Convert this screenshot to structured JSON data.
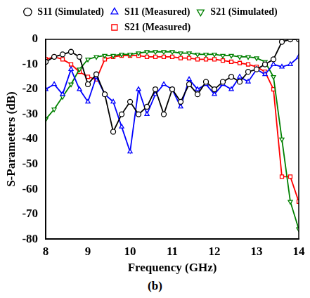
{
  "chart_data": {
    "type": "line",
    "caption": "(b)",
    "x_label": "Frequency (GHz)",
    "y_label": "S-Parameters (dB)",
    "x": [
      8.0,
      8.2,
      8.4,
      8.6,
      8.8,
      9.0,
      9.2,
      9.4,
      9.6,
      9.8,
      10.0,
      10.2,
      10.4,
      10.6,
      10.8,
      11.0,
      11.2,
      11.4,
      11.6,
      11.8,
      12.0,
      12.2,
      12.4,
      12.6,
      12.8,
      13.0,
      13.2,
      13.4,
      13.6,
      13.8,
      14.0
    ],
    "series": [
      {
        "name": "S11 (Simulated)",
        "color": "#000000",
        "marker": "circle",
        "values": [
          -9,
          -7,
          -6,
          -5,
          -7,
          -18,
          -14,
          -22,
          -37,
          -30,
          -25,
          -30,
          -27,
          -20,
          -30,
          -20,
          -25,
          -18,
          -22,
          -17,
          -20,
          -17,
          -15,
          -17,
          -13,
          -12,
          -10,
          -8,
          -1,
          0,
          0
        ]
      },
      {
        "name": "S11 (Measured)",
        "color": "#0000ff",
        "marker": "triangle",
        "values": [
          -20,
          -18,
          -22,
          -12,
          -20,
          -25,
          -15,
          -22,
          -25,
          -35,
          -45,
          -20,
          -30,
          -22,
          -18,
          -20,
          -27,
          -16,
          -20,
          -18,
          -22,
          -18,
          -20,
          -15,
          -17,
          -12,
          -14,
          -10,
          -11,
          -10,
          -7
        ]
      },
      {
        "name": "S21 (Simulated)",
        "color": "#008000",
        "marker": "triangle-down",
        "values": [
          -32,
          -28,
          -23,
          -18,
          -12,
          -8,
          -7,
          -6.5,
          -6.5,
          -6,
          -6,
          -5.5,
          -5,
          -5,
          -5,
          -5,
          -5.5,
          -5.5,
          -6,
          -6,
          -6,
          -6.5,
          -6.5,
          -7,
          -7,
          -7.5,
          -9,
          -15,
          -40,
          -65,
          -76
        ]
      },
      {
        "name": "S21 (Measured)",
        "color": "#ff0000",
        "marker": "square",
        "values": [
          -8,
          -7,
          -8,
          -10,
          -13,
          -15,
          -16,
          -8,
          -7,
          -6.5,
          -6.5,
          -6.5,
          -7,
          -7,
          -7,
          -7,
          -7.5,
          -7.5,
          -8,
          -8,
          -8,
          -8.5,
          -9,
          -9.5,
          -10,
          -11,
          -13,
          -20,
          -55,
          -55,
          -65
        ]
      }
    ],
    "xlim": [
      8,
      14
    ],
    "xticks": [
      8,
      9,
      10,
      11,
      12,
      13,
      14
    ],
    "ylim": [
      -80,
      0
    ],
    "yticks": [
      -80,
      -70,
      -60,
      -50,
      -40,
      -30,
      -20,
      -10,
      0
    ],
    "grid": false,
    "legend": "top"
  }
}
